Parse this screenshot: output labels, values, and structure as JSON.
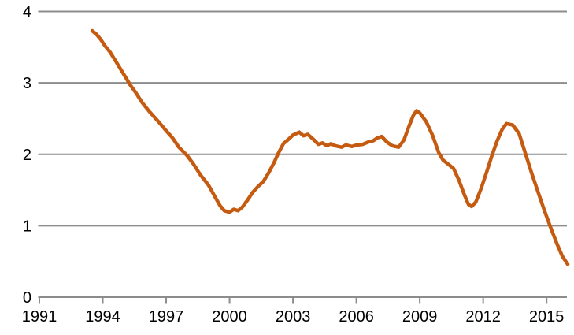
{
  "figure": {
    "background": "#ffffff",
    "gridline_color": "#8C8C8C",
    "axis_color": "#8C8C8C",
    "label_color": "#000000"
  },
  "chart_data": {
    "type": "line",
    "title": "",
    "xlabel": "",
    "ylabel": "",
    "grid": "horizontal",
    "legend": "none",
    "x_axis": {
      "min": 1991,
      "max": 2016,
      "tick_labels": [
        "1991",
        "1994",
        "1997",
        "2000",
        "2003",
        "2006",
        "2009",
        "2012",
        "2015"
      ],
      "tick_values": [
        1991,
        1994,
        1997,
        2000,
        2003,
        2006,
        2009,
        2012,
        2015
      ]
    },
    "y_axis": {
      "min": 0,
      "max": 4,
      "tick_labels": [
        "0",
        "1",
        "2",
        "3",
        "4"
      ],
      "tick_values": [
        0,
        1,
        2,
        3,
        4
      ]
    },
    "series": [
      {
        "name": "orange-line",
        "color": "#C55A11",
        "stroke_width": 4.5,
        "points": [
          [
            1993.5,
            3.73
          ],
          [
            1993.7,
            3.68
          ],
          [
            1993.9,
            3.61
          ],
          [
            1994.1,
            3.52
          ],
          [
            1994.35,
            3.43
          ],
          [
            1994.6,
            3.31
          ],
          [
            1994.85,
            3.19
          ],
          [
            1995.1,
            3.07
          ],
          [
            1995.3,
            2.97
          ],
          [
            1995.55,
            2.87
          ],
          [
            1995.85,
            2.73
          ],
          [
            1996.2,
            2.6
          ],
          [
            1996.6,
            2.47
          ],
          [
            1997.0,
            2.33
          ],
          [
            1997.3,
            2.23
          ],
          [
            1997.6,
            2.1
          ],
          [
            1998.0,
            1.98
          ],
          [
            1998.3,
            1.86
          ],
          [
            1998.6,
            1.72
          ],
          [
            1999.0,
            1.57
          ],
          [
            1999.3,
            1.41
          ],
          [
            1999.55,
            1.28
          ],
          [
            1999.75,
            1.21
          ],
          [
            2000.0,
            1.19
          ],
          [
            2000.2,
            1.23
          ],
          [
            2000.4,
            1.21
          ],
          [
            2000.6,
            1.26
          ],
          [
            2000.85,
            1.36
          ],
          [
            2001.1,
            1.47
          ],
          [
            2001.35,
            1.55
          ],
          [
            2001.6,
            1.62
          ],
          [
            2001.85,
            1.74
          ],
          [
            2002.1,
            1.88
          ],
          [
            2002.3,
            2.01
          ],
          [
            2002.55,
            2.15
          ],
          [
            2002.75,
            2.2
          ],
          [
            2003.0,
            2.27
          ],
          [
            2003.3,
            2.31
          ],
          [
            2003.5,
            2.26
          ],
          [
            2003.7,
            2.28
          ],
          [
            2004.0,
            2.2
          ],
          [
            2004.2,
            2.14
          ],
          [
            2004.4,
            2.16
          ],
          [
            2004.6,
            2.12
          ],
          [
            2004.8,
            2.15
          ],
          [
            2005.0,
            2.12
          ],
          [
            2005.3,
            2.1
          ],
          [
            2005.5,
            2.13
          ],
          [
            2005.8,
            2.11
          ],
          [
            2006.0,
            2.13
          ],
          [
            2006.3,
            2.14
          ],
          [
            2006.55,
            2.17
          ],
          [
            2006.8,
            2.19
          ],
          [
            2007.0,
            2.23
          ],
          [
            2007.2,
            2.25
          ],
          [
            2007.45,
            2.17
          ],
          [
            2007.7,
            2.12
          ],
          [
            2008.0,
            2.1
          ],
          [
            2008.25,
            2.2
          ],
          [
            2008.5,
            2.4
          ],
          [
            2008.7,
            2.55
          ],
          [
            2008.85,
            2.61
          ],
          [
            2009.0,
            2.58
          ],
          [
            2009.3,
            2.46
          ],
          [
            2009.6,
            2.27
          ],
          [
            2009.9,
            2.02
          ],
          [
            2010.1,
            1.92
          ],
          [
            2010.35,
            1.86
          ],
          [
            2010.6,
            1.8
          ],
          [
            2010.85,
            1.64
          ],
          [
            2011.1,
            1.44
          ],
          [
            2011.3,
            1.3
          ],
          [
            2011.45,
            1.27
          ],
          [
            2011.65,
            1.33
          ],
          [
            2011.9,
            1.52
          ],
          [
            2012.15,
            1.74
          ],
          [
            2012.4,
            1.97
          ],
          [
            2012.65,
            2.18
          ],
          [
            2012.9,
            2.35
          ],
          [
            2013.1,
            2.43
          ],
          [
            2013.4,
            2.41
          ],
          [
            2013.7,
            2.29
          ],
          [
            2014.0,
            2.01
          ],
          [
            2014.3,
            1.73
          ],
          [
            2014.6,
            1.47
          ],
          [
            2014.9,
            1.21
          ],
          [
            2015.2,
            0.97
          ],
          [
            2015.5,
            0.74
          ],
          [
            2015.75,
            0.57
          ],
          [
            2016.0,
            0.46
          ]
        ]
      }
    ]
  }
}
